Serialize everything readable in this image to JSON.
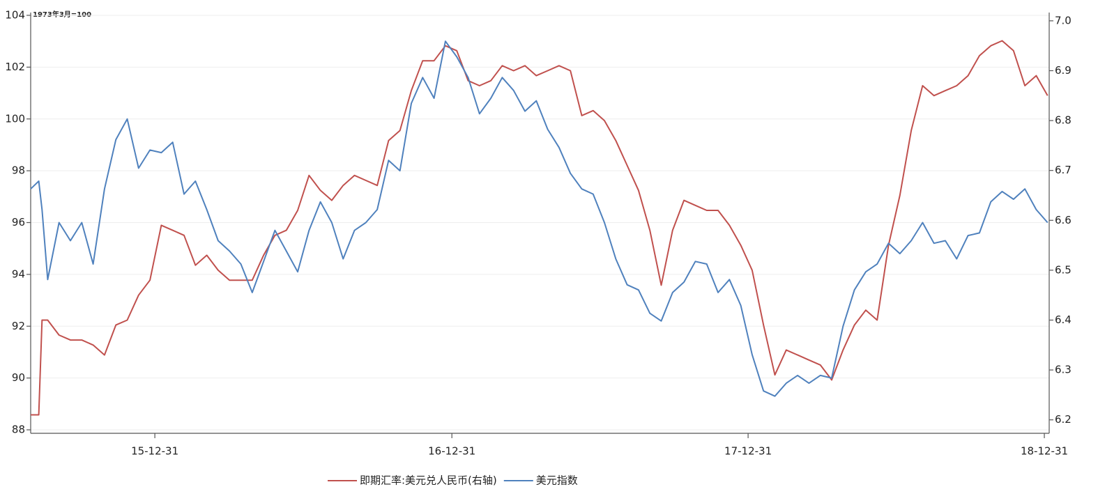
{
  "chart_data": {
    "type": "line",
    "annotation": "1973年3月=100",
    "x": [
      "15-07-31",
      "15-08-10",
      "15-08-14",
      "15-08-21",
      "15-09-04",
      "15-09-18",
      "15-10-02",
      "15-10-16",
      "15-10-30",
      "15-11-13",
      "15-11-27",
      "15-12-11",
      "15-12-25",
      "16-01-08",
      "16-01-22",
      "16-02-05",
      "16-02-19",
      "16-03-04",
      "16-03-18",
      "16-04-01",
      "16-04-15",
      "16-04-29",
      "16-05-13",
      "16-05-27",
      "16-06-10",
      "16-06-24",
      "16-07-08",
      "16-07-22",
      "16-08-05",
      "16-08-19",
      "16-09-02",
      "16-09-16",
      "16-09-30",
      "16-10-14",
      "16-10-28",
      "16-11-11",
      "16-11-25",
      "16-12-09",
      "16-12-23",
      "17-01-06",
      "17-01-20",
      "17-02-03",
      "17-02-17",
      "17-03-03",
      "17-03-17",
      "17-03-31",
      "17-04-14",
      "17-04-28",
      "17-05-12",
      "17-05-26",
      "17-06-09",
      "17-06-23",
      "17-07-07",
      "17-07-21",
      "17-08-04",
      "17-08-18",
      "17-09-01",
      "17-09-15",
      "17-09-29",
      "17-10-13",
      "17-10-27",
      "17-11-10",
      "17-11-24",
      "17-12-08",
      "17-12-22",
      "18-01-05",
      "18-01-19",
      "18-02-02",
      "18-02-16",
      "18-03-02",
      "18-03-16",
      "18-03-30",
      "18-04-13",
      "18-04-27",
      "18-05-11",
      "18-05-25",
      "18-06-08",
      "18-06-22",
      "18-07-06",
      "18-07-20",
      "18-08-03",
      "18-08-17",
      "18-08-31",
      "18-09-14",
      "18-09-28",
      "18-10-12",
      "18-10-26",
      "18-11-09",
      "18-11-23",
      "18-12-07",
      "18-12-21",
      "19-01-04"
    ],
    "series": [
      {
        "name": "即期汇率:美元兑人民币(右轴)",
        "color": "#c0504d",
        "axis": "y2",
        "values": [
          6.21,
          6.21,
          6.4,
          6.4,
          6.37,
          6.36,
          6.36,
          6.35,
          6.33,
          6.39,
          6.4,
          6.45,
          6.48,
          6.59,
          6.58,
          6.57,
          6.51,
          6.53,
          6.5,
          6.48,
          6.48,
          6.48,
          6.53,
          6.57,
          6.58,
          6.62,
          6.69,
          6.66,
          6.64,
          6.67,
          6.69,
          6.68,
          6.67,
          6.76,
          6.78,
          6.86,
          6.92,
          6.92,
          6.95,
          6.94,
          6.88,
          6.87,
          6.88,
          6.91,
          6.9,
          6.91,
          6.89,
          6.9,
          6.91,
          6.9,
          6.81,
          6.82,
          6.8,
          6.76,
          6.71,
          6.66,
          6.58,
          6.47,
          6.58,
          6.64,
          6.63,
          6.62,
          6.62,
          6.59,
          6.55,
          6.5,
          6.39,
          6.29,
          6.34,
          6.33,
          6.32,
          6.31,
          6.28,
          6.34,
          6.39,
          6.42,
          6.4,
          6.55,
          6.65,
          6.78,
          6.87,
          6.85,
          6.86,
          6.87,
          6.89,
          6.93,
          6.95,
          6.96,
          6.94,
          6.87,
          6.89,
          6.85
        ]
      },
      {
        "name": "美元指数",
        "color": "#4f81bd",
        "values": [
          97.3,
          97.6,
          96.5,
          93.8,
          96.0,
          95.3,
          96.0,
          94.4,
          97.3,
          99.2,
          100.0,
          98.1,
          98.8,
          98.7,
          99.1,
          97.1,
          97.6,
          96.5,
          95.3,
          94.9,
          94.4,
          93.3,
          94.5,
          95.7,
          94.9,
          94.1,
          95.7,
          96.8,
          96.0,
          94.6,
          95.7,
          96.0,
          96.5,
          98.4,
          98.0,
          100.6,
          101.6,
          100.8,
          103.0,
          102.4,
          101.6,
          100.2,
          100.8,
          101.6,
          101.1,
          100.3,
          100.7,
          99.6,
          98.9,
          97.9,
          97.3,
          97.1,
          96.0,
          94.6,
          93.6,
          93.4,
          92.5,
          92.2,
          93.3,
          93.7,
          94.5,
          94.4,
          93.3,
          93.8,
          92.8,
          90.9,
          89.5,
          89.3,
          89.8,
          90.1,
          89.8,
          90.1,
          90.0,
          92.0,
          93.4,
          94.1,
          94.4,
          95.2,
          94.8,
          95.3,
          96.0,
          95.2,
          95.3,
          94.6,
          95.5,
          95.6,
          96.8,
          97.2,
          96.9,
          97.3,
          96.5,
          96.0
        ]
      }
    ],
    "xlim": [
      "15-07-31",
      "19-01-06"
    ],
    "xticks": [
      "15-12-31",
      "16-12-31",
      "17-12-31",
      "18-12-31"
    ],
    "ylim": [
      88,
      104
    ],
    "yticks": [
      88,
      90,
      92,
      94,
      96,
      98,
      100,
      102,
      104
    ],
    "y2lim": [
      6.18,
      7.011
    ],
    "y2ticks": [
      6.2,
      6.3,
      6.4,
      6.5,
      6.6,
      6.7,
      6.8,
      6.9,
      {
        "value": 7,
        "label": "7.0"
      }
    ],
    "grid": true,
    "legend": "bottom"
  }
}
